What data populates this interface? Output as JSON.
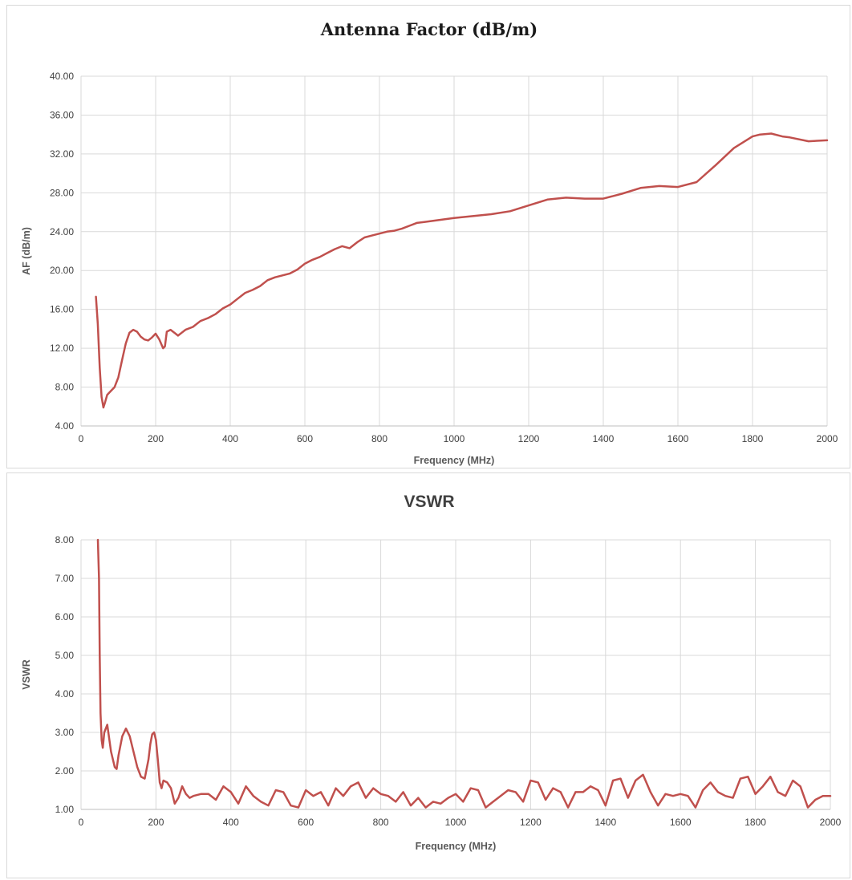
{
  "chart_data": [
    {
      "type": "line",
      "title": "Antenna Factor (dB/m)",
      "xlabel": "Frequency (MHz)",
      "ylabel": "AF (dB/m)",
      "xlim": [
        0,
        2000
      ],
      "ylim": [
        4,
        40
      ],
      "x_ticks": [
        "0",
        "200",
        "400",
        "600",
        "800",
        "1000",
        "1200",
        "1400",
        "1600",
        "1800",
        "2000"
      ],
      "y_ticks": [
        "4.00",
        "8.00",
        "12.00",
        "16.00",
        "20.00",
        "24.00",
        "28.00",
        "32.00",
        "36.00",
        "40.00"
      ],
      "grid": true,
      "legend": "none",
      "series": [
        {
          "color": "#c0504d",
          "x": [
            40,
            45,
            50,
            55,
            60,
            65,
            70,
            80,
            90,
            100,
            110,
            120,
            130,
            140,
            150,
            160,
            170,
            180,
            190,
            200,
            210,
            220,
            225,
            230,
            240,
            250,
            260,
            270,
            280,
            300,
            320,
            340,
            360,
            380,
            400,
            420,
            440,
            460,
            480,
            500,
            520,
            540,
            560,
            580,
            600,
            620,
            640,
            660,
            680,
            700,
            720,
            740,
            760,
            780,
            800,
            820,
            840,
            860,
            880,
            900,
            920,
            940,
            960,
            980,
            1000,
            1050,
            1100,
            1150,
            1200,
            1250,
            1300,
            1350,
            1400,
            1450,
            1500,
            1550,
            1600,
            1650,
            1700,
            1750,
            1800,
            1820,
            1850,
            1880,
            1900,
            1950,
            2000
          ],
          "y": [
            17.3,
            14.5,
            10.0,
            7.0,
            5.9,
            6.5,
            7.2,
            7.6,
            8.0,
            9.0,
            10.8,
            12.5,
            13.6,
            13.9,
            13.7,
            13.2,
            12.9,
            12.8,
            13.1,
            13.5,
            12.9,
            12.0,
            12.2,
            13.7,
            13.9,
            13.6,
            13.3,
            13.6,
            13.9,
            14.2,
            14.8,
            15.1,
            15.5,
            16.1,
            16.5,
            17.1,
            17.7,
            18.0,
            18.4,
            19.0,
            19.3,
            19.5,
            19.7,
            20.1,
            20.7,
            21.1,
            21.4,
            21.8,
            22.2,
            22.5,
            22.3,
            22.9,
            23.4,
            23.6,
            23.8,
            24.0,
            24.1,
            24.3,
            24.6,
            24.9,
            25.0,
            25.1,
            25.2,
            25.3,
            25.4,
            25.6,
            25.8,
            26.1,
            26.7,
            27.3,
            27.5,
            27.4,
            27.4,
            27.9,
            28.5,
            28.7,
            28.6,
            29.1,
            30.8,
            32.6,
            33.8,
            34.0,
            34.1,
            33.8,
            33.7,
            33.3,
            33.4
          ]
        }
      ]
    },
    {
      "type": "line",
      "title": "VSWR",
      "xlabel": "Frequency (MHz)",
      "ylabel": "VSWR",
      "xlim": [
        0,
        2000
      ],
      "ylim": [
        1,
        8
      ],
      "x_ticks": [
        "0",
        "200",
        "400",
        "600",
        "800",
        "1000",
        "1200",
        "1400",
        "1600",
        "1800",
        "2000"
      ],
      "y_ticks": [
        "1.00",
        "2.00",
        "3.00",
        "4.00",
        "5.00",
        "6.00",
        "7.00",
        "8.00"
      ],
      "grid": true,
      "legend": "none",
      "series": [
        {
          "color": "#c0504d",
          "x": [
            45,
            48,
            50,
            52,
            55,
            58,
            62,
            70,
            80,
            90,
            95,
            100,
            110,
            120,
            130,
            140,
            150,
            160,
            170,
            180,
            185,
            190,
            195,
            200,
            205,
            210,
            215,
            220,
            230,
            240,
            250,
            260,
            270,
            280,
            290,
            300,
            320,
            340,
            360,
            380,
            400,
            420,
            440,
            460,
            480,
            500,
            520,
            540,
            560,
            580,
            600,
            620,
            640,
            660,
            680,
            700,
            720,
            740,
            760,
            780,
            800,
            820,
            840,
            860,
            880,
            900,
            920,
            940,
            960,
            980,
            1000,
            1020,
            1040,
            1060,
            1080,
            1100,
            1120,
            1140,
            1160,
            1180,
            1200,
            1220,
            1240,
            1260,
            1280,
            1300,
            1320,
            1340,
            1360,
            1380,
            1400,
            1420,
            1440,
            1460,
            1480,
            1500,
            1520,
            1540,
            1560,
            1580,
            1600,
            1620,
            1640,
            1660,
            1680,
            1700,
            1720,
            1740,
            1760,
            1780,
            1800,
            1820,
            1840,
            1860,
            1880,
            1900,
            1920,
            1940,
            1960,
            1980,
            2000
          ],
          "y": [
            8.0,
            7.0,
            5.0,
            3.5,
            2.8,
            2.6,
            3.0,
            3.2,
            2.5,
            2.1,
            2.05,
            2.4,
            2.9,
            3.1,
            2.9,
            2.5,
            2.1,
            1.85,
            1.8,
            2.3,
            2.7,
            2.95,
            3.0,
            2.8,
            2.3,
            1.7,
            1.55,
            1.75,
            1.7,
            1.55,
            1.15,
            1.3,
            1.6,
            1.4,
            1.3,
            1.35,
            1.4,
            1.4,
            1.25,
            1.6,
            1.45,
            1.15,
            1.6,
            1.35,
            1.2,
            1.1,
            1.5,
            1.45,
            1.1,
            1.05,
            1.5,
            1.35,
            1.45,
            1.1,
            1.55,
            1.35,
            1.6,
            1.7,
            1.3,
            1.55,
            1.4,
            1.35,
            1.2,
            1.45,
            1.1,
            1.3,
            1.05,
            1.2,
            1.15,
            1.3,
            1.4,
            1.2,
            1.55,
            1.5,
            1.05,
            1.2,
            1.35,
            1.5,
            1.45,
            1.2,
            1.75,
            1.7,
            1.25,
            1.55,
            1.45,
            1.05,
            1.45,
            1.45,
            1.6,
            1.5,
            1.1,
            1.75,
            1.8,
            1.3,
            1.75,
            1.9,
            1.45,
            1.1,
            1.4,
            1.35,
            1.4,
            1.35,
            1.05,
            1.5,
            1.7,
            1.45,
            1.35,
            1.3,
            1.8,
            1.85,
            1.4,
            1.6,
            1.85,
            1.45,
            1.35,
            1.75,
            1.6,
            1.05,
            1.25,
            1.35,
            1.35
          ]
        }
      ]
    }
  ]
}
